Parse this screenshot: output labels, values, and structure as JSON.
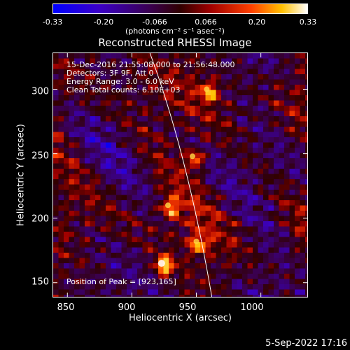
{
  "colorbar": {
    "tick_labels": [
      "-0.33",
      "-0.20",
      "-0.066",
      "0.066",
      "0.20",
      "0.33"
    ],
    "units": "(photons cm⁻² s⁻¹ asec⁻²)",
    "range": [
      -0.33,
      0.33
    ]
  },
  "plot": {
    "title": "Reconstructed RHESSI Image",
    "annotations": {
      "time": "15-Dec-2016 21:55:08.000 to 21:56:48.000",
      "detectors": "Detectors: 3F 9F, Att 0",
      "energy": "Energy Range: 3.0 - 6.0 keV",
      "clean": "Clean     Total counts: 6.10E+03",
      "peak": "Position of Peak = [923,165]"
    },
    "x_label": "Heliocentric X (arcsec)",
    "y_label": "Heliocentric Y (arcsec)",
    "x_ticks": [
      "850",
      "900",
      "950",
      "1000"
    ],
    "y_ticks": [
      "150",
      "200",
      "250",
      "300"
    ]
  },
  "chart_data": {
    "type": "heatmap",
    "title": "Reconstructed RHESSI Image",
    "xlabel": "Heliocentric X (arcsec)",
    "ylabel": "Heliocentric Y (arcsec)",
    "xlim": [
      839,
      1036
    ],
    "ylim": [
      139,
      328
    ],
    "x_ticks": [
      850,
      900,
      950,
      1000
    ],
    "y_ticks": [
      150,
      200,
      250,
      300
    ],
    "colorbar_range": [
      -0.33,
      0.33
    ],
    "peak": [
      923,
      165
    ],
    "bright_sources": [
      {
        "x": 923,
        "y": 165
      },
      {
        "x": 958,
        "y": 300
      },
      {
        "x": 947,
        "y": 248
      },
      {
        "x": 928,
        "y": 210
      },
      {
        "x": 950,
        "y": 182
      }
    ],
    "limb_curve": [
      [
        914,
        328
      ],
      [
        930,
        300
      ],
      [
        943,
        250
      ],
      [
        954,
        200
      ],
      [
        962,
        139
      ]
    ]
  },
  "footer": {
    "date": "5-Sep-2022 17:16"
  }
}
